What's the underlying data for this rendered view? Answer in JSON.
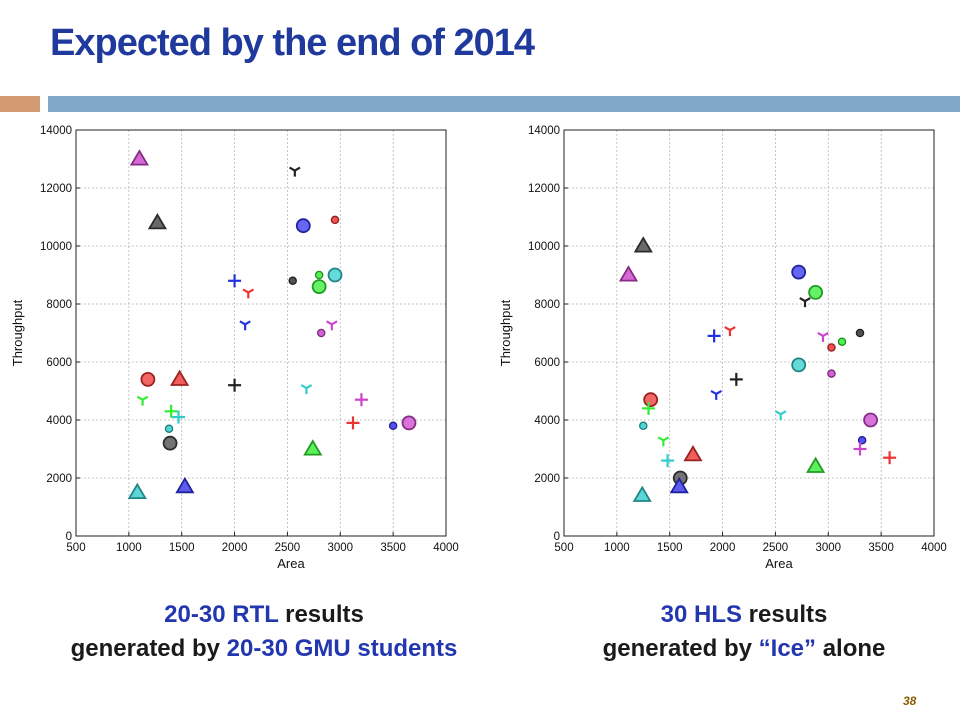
{
  "slide": {
    "title": "Expected by the end of 2014",
    "page_number": "38"
  },
  "captions": {
    "left": {
      "line1_a": "20-30 ",
      "line1_b": "RTL",
      "line1_c": " results",
      "line2_a": "generated by ",
      "line2_b": "20-30 GMU students"
    },
    "right": {
      "line1_a": "30 ",
      "line1_b": "HLS",
      "line1_c": " results",
      "line2_a": "generated by ",
      "line2_b": "“Ice”",
      "line2_c": " alone"
    }
  },
  "colors": {
    "title": "#1f3a9c",
    "accent_blue": "#2236b0",
    "bar_left": "#d29b72",
    "bar_right": "#7fa8c9"
  },
  "chart_data": [
    {
      "type": "scatter",
      "xlabel": "Area",
      "ylabel": "Throughput",
      "xlim": [
        500,
        4000
      ],
      "ylim": [
        0,
        14000
      ],
      "xticks": [
        500,
        1000,
        1500,
        2000,
        2500,
        3000,
        3500,
        4000
      ],
      "yticks": [
        0,
        2000,
        4000,
        6000,
        8000,
        10000,
        12000,
        14000
      ],
      "grid": true,
      "points": [
        {
          "x": 1100,
          "y": 13000,
          "marker": "triangle",
          "color": "#cc44cc"
        },
        {
          "x": 1270,
          "y": 10800,
          "marker": "triangle",
          "color": "#444444"
        },
        {
          "x": 2570,
          "y": 12600,
          "marker": "tri_down",
          "color": "#222222"
        },
        {
          "x": 2950,
          "y": 10900,
          "marker": "circle_s",
          "color": "#ee3333"
        },
        {
          "x": 2650,
          "y": 10700,
          "marker": "circle",
          "color": "#3333ee"
        },
        {
          "x": 2800,
          "y": 9000,
          "marker": "circle_s",
          "color": "#33ee33"
        },
        {
          "x": 2950,
          "y": 9000,
          "marker": "circle",
          "color": "#33cccc"
        },
        {
          "x": 2550,
          "y": 8800,
          "marker": "circle_s",
          "color": "#333333"
        },
        {
          "x": 2800,
          "y": 8600,
          "marker": "circle",
          "color": "#33ee33"
        },
        {
          "x": 2000,
          "y": 8800,
          "marker": "plus",
          "color": "#2233dd"
        },
        {
          "x": 2130,
          "y": 8400,
          "marker": "tri_down",
          "color": "#ee3333"
        },
        {
          "x": 2100,
          "y": 7300,
          "marker": "tri_down",
          "color": "#2233dd"
        },
        {
          "x": 2920,
          "y": 7300,
          "marker": "tri_down",
          "color": "#cc44cc"
        },
        {
          "x": 2820,
          "y": 7000,
          "marker": "circle_s",
          "color": "#cc44cc"
        },
        {
          "x": 1180,
          "y": 5400,
          "marker": "circle",
          "color": "#ee3333"
        },
        {
          "x": 1480,
          "y": 5400,
          "marker": "triangle",
          "color": "#ee3333"
        },
        {
          "x": 2000,
          "y": 5200,
          "marker": "plus",
          "color": "#222222"
        },
        {
          "x": 2680,
          "y": 5100,
          "marker": "tri_down",
          "color": "#33cccc"
        },
        {
          "x": 1130,
          "y": 4700,
          "marker": "tri_down",
          "color": "#33ee33"
        },
        {
          "x": 3200,
          "y": 4700,
          "marker": "plus",
          "color": "#cc44cc"
        },
        {
          "x": 1400,
          "y": 4300,
          "marker": "plus",
          "color": "#33ee33"
        },
        {
          "x": 1470,
          "y": 4100,
          "marker": "plus",
          "color": "#33cccc"
        },
        {
          "x": 3120,
          "y": 3900,
          "marker": "plus",
          "color": "#ee3333"
        },
        {
          "x": 3500,
          "y": 3800,
          "marker": "circle_s",
          "color": "#3333ee"
        },
        {
          "x": 3650,
          "y": 3900,
          "marker": "circle",
          "color": "#cc44cc"
        },
        {
          "x": 1380,
          "y": 3700,
          "marker": "circle_s",
          "color": "#33cccc"
        },
        {
          "x": 1390,
          "y": 3200,
          "marker": "circle",
          "color": "#444444"
        },
        {
          "x": 2740,
          "y": 3000,
          "marker": "triangle",
          "color": "#33ee33"
        },
        {
          "x": 1530,
          "y": 1700,
          "marker": "triangle",
          "color": "#3333ee"
        },
        {
          "x": 1080,
          "y": 1500,
          "marker": "triangle",
          "color": "#33cccc"
        }
      ]
    },
    {
      "type": "scatter",
      "xlabel": "Area",
      "ylabel": "Throughput",
      "xlim": [
        500,
        4000
      ],
      "ylim": [
        0,
        14000
      ],
      "xticks": [
        500,
        1000,
        1500,
        2000,
        2500,
        3000,
        3500,
        4000
      ],
      "yticks": [
        0,
        2000,
        4000,
        6000,
        8000,
        10000,
        12000,
        14000
      ],
      "grid": true,
      "points": [
        {
          "x": 1250,
          "y": 10000,
          "marker": "triangle",
          "color": "#444444"
        },
        {
          "x": 1110,
          "y": 9000,
          "marker": "triangle",
          "color": "#cc44cc"
        },
        {
          "x": 2720,
          "y": 9100,
          "marker": "circle",
          "color": "#3333ee"
        },
        {
          "x": 2880,
          "y": 8400,
          "marker": "circle",
          "color": "#33ee33"
        },
        {
          "x": 2780,
          "y": 8100,
          "marker": "tri_down",
          "color": "#222222"
        },
        {
          "x": 3300,
          "y": 7000,
          "marker": "circle_s",
          "color": "#333333"
        },
        {
          "x": 2070,
          "y": 7100,
          "marker": "tri_down",
          "color": "#ee3333"
        },
        {
          "x": 1920,
          "y": 6900,
          "marker": "plus",
          "color": "#2233dd"
        },
        {
          "x": 2950,
          "y": 6900,
          "marker": "tri_down",
          "color": "#cc44cc"
        },
        {
          "x": 3130,
          "y": 6700,
          "marker": "circle_s",
          "color": "#33ee33"
        },
        {
          "x": 3030,
          "y": 6500,
          "marker": "circle_s",
          "color": "#ee3333"
        },
        {
          "x": 2720,
          "y": 5900,
          "marker": "circle",
          "color": "#33cccc"
        },
        {
          "x": 3030,
          "y": 5600,
          "marker": "circle_s",
          "color": "#cc44cc"
        },
        {
          "x": 2130,
          "y": 5400,
          "marker": "plus",
          "color": "#222222"
        },
        {
          "x": 1940,
          "y": 4900,
          "marker": "tri_down",
          "color": "#2233dd"
        },
        {
          "x": 1320,
          "y": 4700,
          "marker": "circle",
          "color": "#ee3333"
        },
        {
          "x": 1300,
          "y": 4400,
          "marker": "plus",
          "color": "#33ee33"
        },
        {
          "x": 2550,
          "y": 4200,
          "marker": "tri_down",
          "color": "#33cccc"
        },
        {
          "x": 3400,
          "y": 4000,
          "marker": "circle",
          "color": "#cc44cc"
        },
        {
          "x": 1250,
          "y": 3800,
          "marker": "circle_s",
          "color": "#33cccc"
        },
        {
          "x": 1440,
          "y": 3300,
          "marker": "tri_down",
          "color": "#33ee33"
        },
        {
          "x": 3320,
          "y": 3300,
          "marker": "circle_s",
          "color": "#3333ee"
        },
        {
          "x": 3300,
          "y": 3000,
          "marker": "plus",
          "color": "#cc44cc"
        },
        {
          "x": 1720,
          "y": 2800,
          "marker": "triangle",
          "color": "#ee3333"
        },
        {
          "x": 1480,
          "y": 2600,
          "marker": "plus",
          "color": "#33cccc"
        },
        {
          "x": 3580,
          "y": 2700,
          "marker": "plus",
          "color": "#ee3333"
        },
        {
          "x": 2880,
          "y": 2400,
          "marker": "triangle",
          "color": "#33ee33"
        },
        {
          "x": 1600,
          "y": 2000,
          "marker": "circle",
          "color": "#444444"
        },
        {
          "x": 1590,
          "y": 1700,
          "marker": "triangle",
          "color": "#3333ee"
        },
        {
          "x": 1240,
          "y": 1400,
          "marker": "triangle",
          "color": "#33cccc"
        }
      ]
    }
  ]
}
